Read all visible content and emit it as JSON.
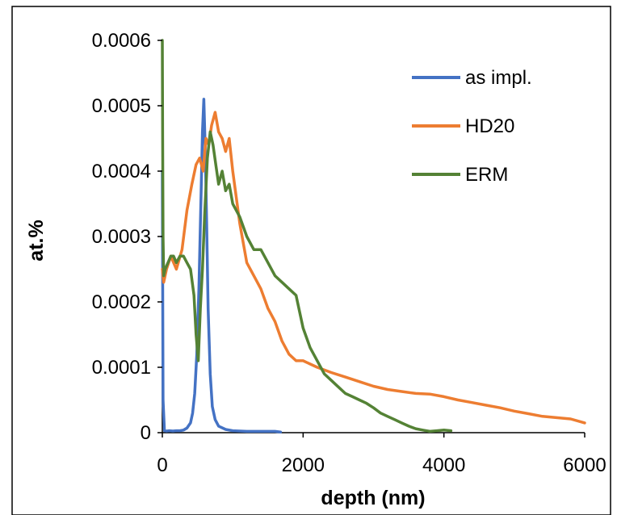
{
  "chart_data": {
    "type": "line",
    "xlabel": "depth (nm)",
    "ylabel": "at.%",
    "xlim": [
      0,
      6000
    ],
    "ylim": [
      0,
      0.0006
    ],
    "x_ticks": [
      0,
      2000,
      4000,
      6000
    ],
    "x_tick_labels": [
      "0",
      "2000",
      "4000",
      "6000"
    ],
    "y_ticks": [
      0,
      0.0001,
      0.0002,
      0.0003,
      0.0004,
      0.0005,
      0.0006
    ],
    "y_tick_labels": [
      "0",
      "0.0001",
      "0.0002",
      "0.0003",
      "0.0004",
      "0.0005",
      "0.0006"
    ],
    "grid": false,
    "legend_position": "top-right",
    "series": [
      {
        "name": "as impl.",
        "color": "#4472c4",
        "x": [
          0,
          10,
          30,
          60,
          100,
          150,
          200,
          250,
          300,
          350,
          400,
          430,
          460,
          490,
          520,
          550,
          570,
          590,
          610,
          630,
          650,
          680,
          710,
          750,
          800,
          900,
          1000,
          1200,
          1400,
          1600,
          1680
        ],
        "y": [
          0.0004,
          5e-05,
          3e-06,
          2.5e-06,
          3e-06,
          2.5e-06,
          3e-06,
          3e-06,
          4e-06,
          7e-06,
          1.5e-05,
          3e-05,
          6e-05,
          0.00012,
          0.00022,
          0.00036,
          0.00046,
          0.00051,
          0.00043,
          0.00032,
          0.00019,
          9e-05,
          4e-05,
          2e-05,
          1e-05,
          5e-06,
          3e-06,
          2e-06,
          2e-06,
          2e-06,
          1e-06
        ]
      },
      {
        "name": "HD20",
        "color": "#ed7d31",
        "x": [
          0,
          20,
          60,
          120,
          200,
          280,
          350,
          420,
          480,
          530,
          580,
          620,
          660,
          700,
          750,
          800,
          850,
          900,
          950,
          1000,
          1100,
          1200,
          1300,
          1400,
          1500,
          1600,
          1700,
          1800,
          1900,
          2000,
          2200,
          2400,
          2600,
          2800,
          3000,
          3200,
          3400,
          3600,
          3800,
          4000,
          4200,
          4400,
          4600,
          4800,
          5000,
          5200,
          5400,
          5600,
          5800,
          6000
        ],
        "y": [
          0.00025,
          0.00023,
          0.00025,
          0.00027,
          0.00025,
          0.00028,
          0.00034,
          0.00038,
          0.00041,
          0.00042,
          0.0004,
          0.00045,
          0.00044,
          0.00047,
          0.00049,
          0.00046,
          0.00045,
          0.00043,
          0.00045,
          0.0004,
          0.00032,
          0.00026,
          0.00024,
          0.00022,
          0.00019,
          0.00017,
          0.00014,
          0.00012,
          0.00011,
          0.00011,
          0.0001,
          9.2e-05,
          8.5e-05,
          7.8e-05,
          7.1e-05,
          6.6e-05,
          6.3e-05,
          6e-05,
          5.9e-05,
          5.5e-05,
          5e-05,
          4.6e-05,
          4.2e-05,
          3.8e-05,
          3.3e-05,
          2.9e-05,
          2.5e-05,
          2.3e-05,
          2.1e-05,
          1.5e-05
        ]
      },
      {
        "name": "ERM",
        "color": "#548235",
        "x": [
          0,
          5,
          10,
          20,
          40,
          80,
          120,
          160,
          200,
          250,
          300,
          350,
          400,
          450,
          480,
          510,
          540,
          570,
          600,
          640,
          680,
          720,
          760,
          800,
          850,
          900,
          950,
          1000,
          1100,
          1200,
          1300,
          1400,
          1500,
          1600,
          1700,
          1800,
          1900,
          2000,
          2100,
          2200,
          2300,
          2400,
          2500,
          2600,
          2700,
          2800,
          2900,
          3000,
          3100,
          3200,
          3300,
          3400,
          3500,
          3600,
          3700,
          3800,
          3900,
          4000,
          4100
        ],
        "y": [
          0.0006,
          0.00045,
          0.0003,
          0.00024,
          0.00025,
          0.00026,
          0.00027,
          0.00027,
          0.00026,
          0.00027,
          0.00027,
          0.00026,
          0.00025,
          0.00021,
          0.00015,
          0.00011,
          0.00019,
          0.00025,
          0.00033,
          0.00042,
          0.00046,
          0.00044,
          0.00041,
          0.00038,
          0.0004,
          0.00037,
          0.00038,
          0.00035,
          0.00033,
          0.0003,
          0.00028,
          0.00028,
          0.00026,
          0.00024,
          0.00023,
          0.00022,
          0.00021,
          0.00016,
          0.00013,
          0.00011,
          9e-05,
          8e-05,
          7e-05,
          6e-05,
          5.5e-05,
          5e-05,
          4.5e-05,
          3.8e-05,
          3e-05,
          2.5e-05,
          2e-05,
          1.5e-05,
          1e-05,
          6e-06,
          4e-06,
          2e-06,
          3e-06,
          4e-06,
          3e-06
        ]
      }
    ]
  }
}
